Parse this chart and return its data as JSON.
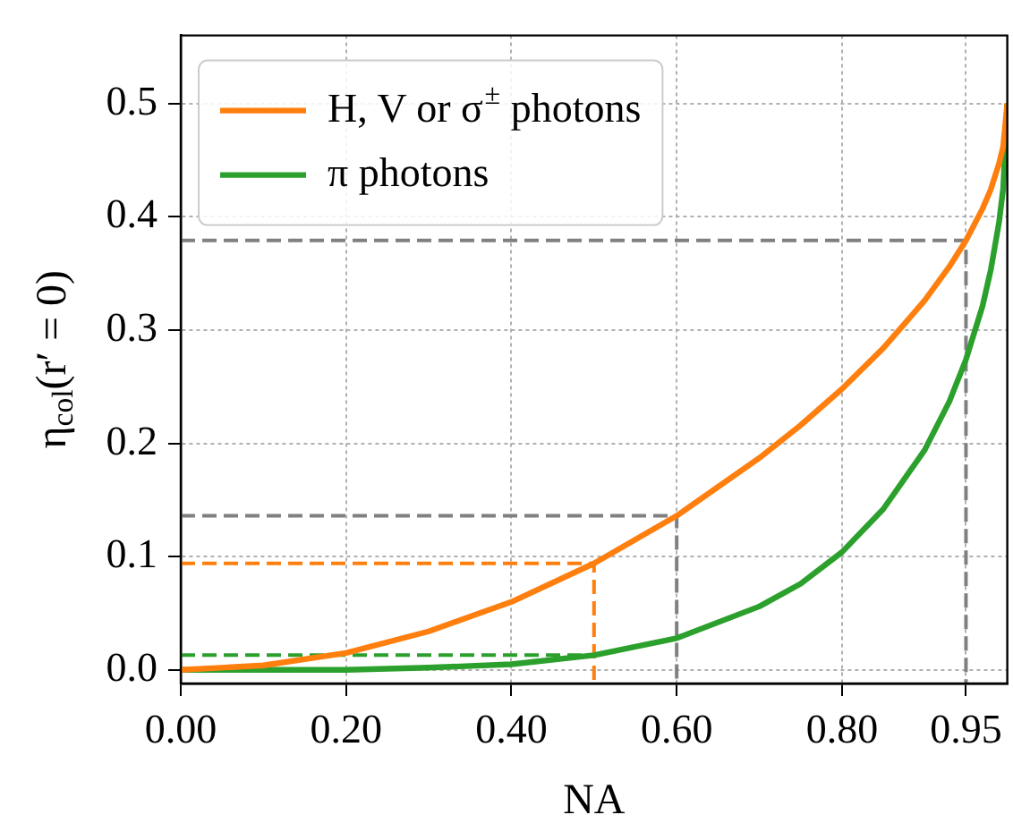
{
  "chart_data": {
    "type": "line",
    "xlabel": "NA",
    "ylabel": "η$_{col}$(r′ = 0)",
    "xlim": [
      0,
      1
    ],
    "ylim": [
      -0.012,
      0.56
    ],
    "xticks": [
      {
        "value": 0,
        "label": "0.00"
      },
      {
        "value": 0.2,
        "label": "0.20"
      },
      {
        "value": 0.4,
        "label": "0.40"
      },
      {
        "value": 0.6,
        "label": "0.60"
      },
      {
        "value": 0.8,
        "label": "0.80"
      },
      0.95
    ],
    "yticks": [
      {
        "value": 0,
        "label": "0.0"
      },
      0.1,
      0.2,
      0.3,
      0.4,
      0.5
    ],
    "grid": true,
    "legend": "top left",
    "series": [
      {
        "name": "H, V or σ$^{±}$ photons",
        "color": "#ff7f0e",
        "line_style": "solid",
        "x": [
          0,
          0.1,
          0.2,
          0.3,
          0.4,
          0.5,
          0.6,
          0.7,
          0.75,
          0.8,
          0.85,
          0.9,
          0.93,
          0.95,
          0.97,
          0.98,
          0.99,
          0.995,
          1
        ],
        "values": [
          0,
          0.004,
          0.015,
          0.034,
          0.06,
          0.094,
          0.136,
          0.187,
          0.216,
          0.248,
          0.284,
          0.326,
          0.356,
          0.379,
          0.407,
          0.424,
          0.447,
          0.462,
          0.5
        ]
      },
      {
        "name": "π photons",
        "color": "#2ca02c",
        "line_style": "solid",
        "x": [
          0,
          0.1,
          0.2,
          0.3,
          0.4,
          0.5,
          0.6,
          0.7,
          0.75,
          0.8,
          0.85,
          0.9,
          0.93,
          0.95,
          0.97,
          0.98,
          0.99,
          0.995,
          1
        ],
        "values": [
          0,
          0,
          0,
          0.002,
          0.005,
          0.013,
          0.028,
          0.056,
          0.076,
          0.104,
          0.142,
          0.194,
          0.237,
          0.274,
          0.321,
          0.353,
          0.395,
          0.425,
          0.5
        ]
      },
      {
        "color": "#ff7f0e",
        "line_style": "dashed",
        "x": [
          0,
          0.5,
          0.5
        ],
        "values": [
          0.094,
          0.094,
          -0.012
        ]
      },
      {
        "color": "#2ca02c",
        "line_style": "dashed",
        "x": [
          0,
          0.5
        ],
        "values": [
          0.013,
          0.013
        ]
      },
      {
        "color": "#808080",
        "line_style": "dashed",
        "x": [
          0,
          0.6,
          0.6
        ],
        "values": [
          0.136,
          0.136,
          -0.012
        ]
      },
      {
        "color": "#808080",
        "line_style": "dashed",
        "x": [
          0,
          0.95,
          0.95
        ],
        "values": [
          0.379,
          0.379,
          -0.012
        ]
      }
    ]
  }
}
